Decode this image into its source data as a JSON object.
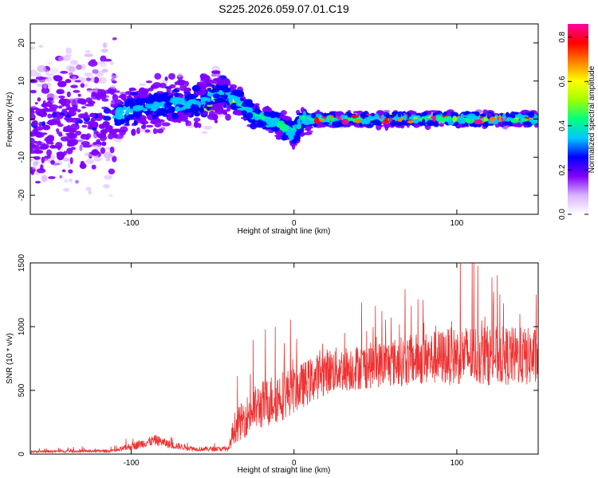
{
  "title": "S225.2026.059.07.01.C19",
  "chart_data": [
    {
      "type": "heatmap",
      "xlabel": "Height of straight line (km)",
      "ylabel": "Frequency (Hz)",
      "xlim": [
        -162,
        150
      ],
      "ylim": [
        -25,
        25
      ],
      "x_ticks": [
        -100,
        0,
        100
      ],
      "y_ticks": [
        -20,
        -10,
        0,
        10,
        20
      ],
      "colorbar": {
        "label": "Normalized spectral amplitude",
        "range": [
          0,
          0.86
        ],
        "ticks": [
          0.0,
          0.2,
          0.4,
          0.6,
          0.8
        ],
        "colors": [
          "#ffffff",
          "#d9b3ff",
          "#8000ff",
          "#0000ff",
          "#00c8ff",
          "#00ff80",
          "#a0ff00",
          "#ffff00",
          "#ff8000",
          "#ff0000",
          "#ff00a0"
        ]
      },
      "ridge": [
        {
          "x": -162,
          "f": -2
        },
        {
          "x": -130,
          "f": 0
        },
        {
          "x": -110,
          "f": 1
        },
        {
          "x": -95,
          "f": 3
        },
        {
          "x": -80,
          "f": 4
        },
        {
          "x": -60,
          "f": 4
        },
        {
          "x": -45,
          "f": 6.5
        },
        {
          "x": -35,
          "f": 5
        },
        {
          "x": -25,
          "f": 1
        },
        {
          "x": -10,
          "f": -1
        },
        {
          "x": 0,
          "f": -4
        },
        {
          "x": 5,
          "f": 0
        },
        {
          "x": 50,
          "f": 0
        },
        {
          "x": 100,
          "f": 0
        },
        {
          "x": 150,
          "f": 0
        }
      ]
    },
    {
      "type": "line",
      "xlabel": "Height of straight line (km)",
      "ylabel": "SNR (10 * v/v)",
      "xlim": [
        -162,
        150
      ],
      "ylim": [
        0,
        1500
      ],
      "x_ticks": [
        -100,
        0,
        100
      ],
      "y_ticks": [
        0,
        500,
        1000,
        1500
      ],
      "color": "#ee3333",
      "envelope": [
        {
          "x": -162,
          "mean": 20,
          "spread": 15
        },
        {
          "x": -110,
          "mean": 25,
          "spread": 20
        },
        {
          "x": -100,
          "mean": 60,
          "spread": 50
        },
        {
          "x": -85,
          "mean": 110,
          "spread": 70
        },
        {
          "x": -75,
          "mean": 70,
          "spread": 50
        },
        {
          "x": -60,
          "mean": 40,
          "spread": 30
        },
        {
          "x": -40,
          "mean": 40,
          "spread": 30
        },
        {
          "x": -37,
          "mean": 200,
          "spread": 200
        },
        {
          "x": -25,
          "mean": 350,
          "spread": 300
        },
        {
          "x": -10,
          "mean": 450,
          "spread": 350
        },
        {
          "x": 0,
          "mean": 500,
          "spread": 300
        },
        {
          "x": 20,
          "mean": 650,
          "spread": 300
        },
        {
          "x": 50,
          "mean": 700,
          "spread": 300
        },
        {
          "x": 80,
          "mean": 750,
          "spread": 350
        },
        {
          "x": 110,
          "mean": 780,
          "spread": 400
        },
        {
          "x": 150,
          "mean": 760,
          "spread": 380
        }
      ]
    }
  ]
}
